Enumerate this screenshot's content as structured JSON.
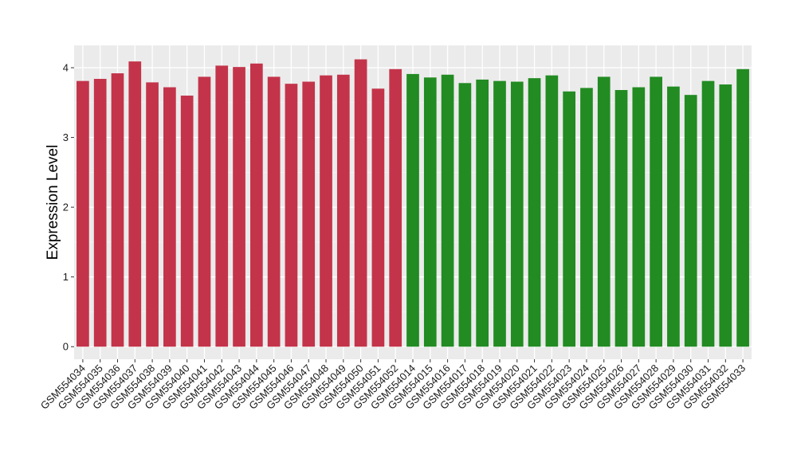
{
  "chart_data": {
    "type": "bar",
    "xlabel": "",
    "ylabel": "Expression Level",
    "ylim": [
      -0.18,
      4.32
    ],
    "yticks": [
      0,
      1,
      2,
      3,
      4
    ],
    "grid": true,
    "legend": "none",
    "colors": {
      "group1": "#c3344a",
      "group2": "#228b22",
      "panel": "#ebebeb",
      "grid_major": "#ffffff"
    },
    "categories": [
      "GSM554034",
      "GSM554035",
      "GSM554036",
      "GSM554037",
      "GSM554038",
      "GSM554039",
      "GSM554040",
      "GSM554041",
      "GSM554042",
      "GSM554043",
      "GSM554044",
      "GSM554045",
      "GSM554046",
      "GSM554047",
      "GSM554048",
      "GSM554049",
      "GSM554050",
      "GSM554051",
      "GSM554052",
      "GSM554014",
      "GSM554015",
      "GSM554016",
      "GSM554017",
      "GSM554018",
      "GSM554019",
      "GSM554020",
      "GSM554021",
      "GSM554022",
      "GSM554023",
      "GSM554024",
      "GSM554025",
      "GSM554026",
      "GSM554027",
      "GSM554028",
      "GSM554029",
      "GSM554030",
      "GSM554031",
      "GSM554032",
      "GSM554033"
    ],
    "values": [
      3.81,
      3.84,
      3.92,
      4.09,
      3.79,
      3.72,
      3.6,
      3.87,
      4.03,
      4.01,
      4.06,
      3.87,
      3.77,
      3.8,
      3.89,
      3.9,
      4.12,
      3.7,
      3.98,
      3.91,
      3.86,
      3.9,
      3.78,
      3.83,
      3.81,
      3.8,
      3.85,
      3.89,
      3.66,
      3.71,
      3.87,
      3.68,
      3.72,
      3.87,
      3.73,
      3.61,
      3.81,
      3.76,
      3.98
    ],
    "groups": [
      1,
      1,
      1,
      1,
      1,
      1,
      1,
      1,
      1,
      1,
      1,
      1,
      1,
      1,
      1,
      1,
      1,
      1,
      1,
      2,
      2,
      2,
      2,
      2,
      2,
      2,
      2,
      2,
      2,
      2,
      2,
      2,
      2,
      2,
      2,
      2,
      2,
      2,
      2
    ]
  }
}
